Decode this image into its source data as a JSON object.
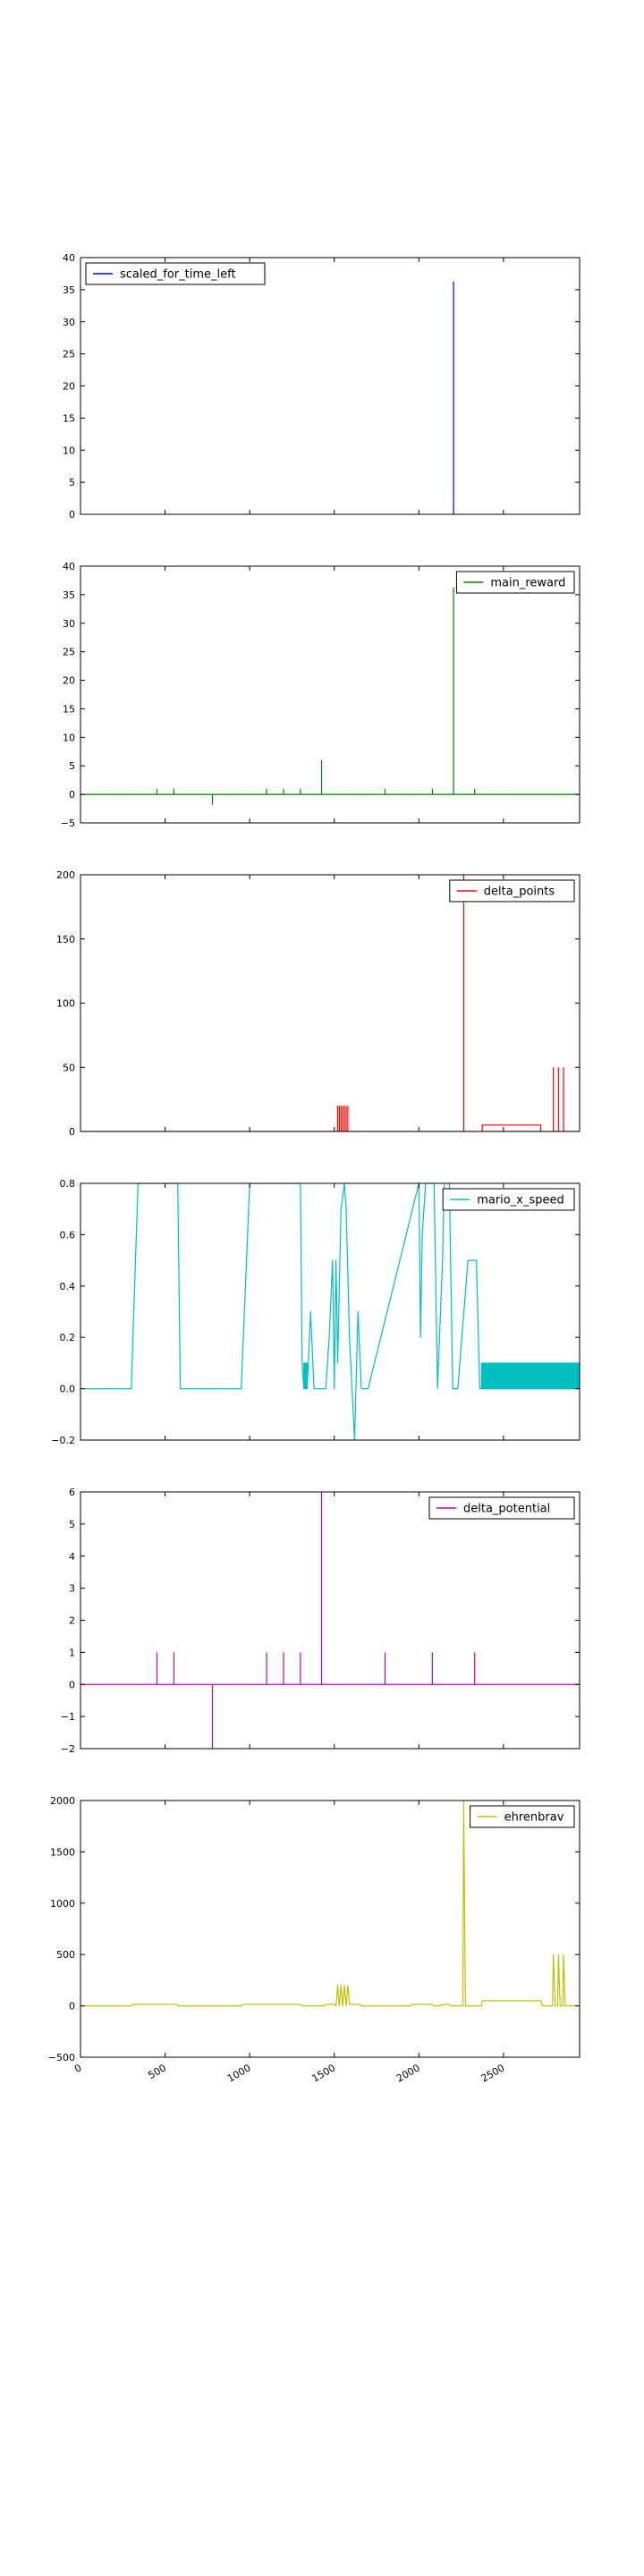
{
  "chart_data": [
    {
      "type": "line",
      "series": [
        {
          "name": "scaled_for_time_left",
          "color": "#0000ff",
          "spikes": [
            [
              2205,
              36.3
            ]
          ]
        }
      ],
      "ylim": [
        0,
        40
      ],
      "yticks": [
        0,
        5,
        10,
        15,
        20,
        25,
        30,
        35,
        40
      ],
      "legend": "top-left"
    },
    {
      "type": "line",
      "series": [
        {
          "name": "main_reward",
          "color": "#008000",
          "baseline": 0,
          "spikes": [
            [
              452,
              1
            ],
            [
              552,
              1
            ],
            [
              780,
              -1.8
            ],
            [
              1100,
              1
            ],
            [
              1200,
              1
            ],
            [
              1300,
              1
            ],
            [
              1425,
              6
            ],
            [
              1800,
              1
            ],
            [
              2080,
              1
            ],
            [
              2205,
              36.3
            ],
            [
              2330,
              1
            ]
          ]
        }
      ],
      "ylim": [
        -5,
        40
      ],
      "yticks": [
        -5,
        0,
        5,
        10,
        15,
        20,
        25,
        30,
        35,
        40
      ],
      "legend": "top-right"
    },
    {
      "type": "line",
      "series": [
        {
          "name": "delta_points",
          "color": "#ff0000",
          "baseline": 0,
          "spikes": [
            [
              1520,
              20
            ],
            [
              1530,
              20
            ],
            [
              1540,
              20
            ],
            [
              1550,
              20
            ],
            [
              1560,
              20
            ],
            [
              1570,
              20
            ],
            [
              1580,
              20
            ],
            [
              2265,
              200
            ],
            [
              2795,
              50
            ],
            [
              2825,
              50
            ],
            [
              2855,
              50
            ]
          ],
          "boxes": [
            [
              2375,
              2720,
              5
            ]
          ]
        }
      ],
      "ylim": [
        0,
        200
      ],
      "yticks": [
        0,
        50,
        100,
        150,
        200
      ],
      "legend": "top-right"
    },
    {
      "type": "line",
      "series": [
        {
          "name": "mario_x_speed",
          "color": "#00bfbf",
          "points": [
            [
              0,
              0
            ],
            [
              300,
              0
            ],
            [
              340,
              0.8
            ],
            [
              575,
              0.8
            ],
            [
              590,
              0
            ],
            [
              950,
              0
            ],
            [
              1000,
              0.8
            ],
            [
              1300,
              0.8
            ],
            [
              1310,
              0.1
            ],
            [
              1320,
              0
            ],
            [
              1330,
              0.1
            ],
            [
              1340,
              0
            ],
            [
              1360,
              0.3
            ],
            [
              1380,
              0
            ],
            [
              1450,
              0
            ],
            [
              1470,
              0.2
            ],
            [
              1490,
              0.5
            ],
            [
              1500,
              0
            ],
            [
              1510,
              0.5
            ],
            [
              1520,
              0.1
            ],
            [
              1540,
              0.7
            ],
            [
              1560,
              0.8
            ],
            [
              1570,
              0.7
            ],
            [
              1590,
              0.2
            ],
            [
              1620,
              -0.2
            ],
            [
              1640,
              0.3
            ],
            [
              1660,
              0
            ],
            [
              1700,
              0
            ],
            [
              2000,
              0.8
            ],
            [
              2010,
              0.2
            ],
            [
              2020,
              0.6
            ],
            [
              2040,
              0.8
            ],
            [
              2090,
              0.8
            ],
            [
              2110,
              0
            ],
            [
              2140,
              0.5
            ],
            [
              2150,
              0.8
            ],
            [
              2180,
              0.8
            ],
            [
              2200,
              0
            ],
            [
              2230,
              0
            ],
            [
              2290,
              0.5
            ],
            [
              2340,
              0.5
            ],
            [
              2360,
              0
            ],
            [
              2950,
              0
            ]
          ],
          "bands": [
            [
              1320,
              1340,
              0,
              0.1
            ],
            [
              2370,
              2950,
              0,
              0.1
            ]
          ]
        }
      ],
      "ylim": [
        -0.2,
        0.8
      ],
      "yticks": [
        -0.2,
        0.0,
        0.2,
        0.4,
        0.6,
        0.8
      ],
      "legend": "top-right"
    },
    {
      "type": "line",
      "series": [
        {
          "name": "delta_potential",
          "color": "#bf00bf",
          "baseline": 0,
          "spikes": [
            [
              452,
              1
            ],
            [
              552,
              1
            ],
            [
              780,
              -2
            ],
            [
              1100,
              1
            ],
            [
              1200,
              1
            ],
            [
              1300,
              1
            ],
            [
              1425,
              6
            ],
            [
              1800,
              1
            ],
            [
              2080,
              1
            ],
            [
              2330,
              1
            ]
          ]
        }
      ],
      "ylim": [
        -2,
        6
      ],
      "yticks": [
        -2,
        -1,
        0,
        1,
        2,
        3,
        4,
        5,
        6
      ],
      "legend": "top-right"
    },
    {
      "type": "line",
      "series": [
        {
          "name": "ehrenbrav",
          "color": "#bfbf00",
          "points": [
            [
              0,
              0
            ],
            [
              300,
              0
            ],
            [
              310,
              15
            ],
            [
              570,
              15
            ],
            [
              580,
              0
            ],
            [
              950,
              0
            ],
            [
              960,
              15
            ],
            [
              1300,
              15
            ],
            [
              1310,
              0
            ],
            [
              1440,
              0
            ],
            [
              1450,
              15
            ],
            [
              1500,
              15
            ],
            [
              1510,
              0
            ],
            [
              1520,
              200
            ],
            [
              1530,
              0
            ],
            [
              1540,
              200
            ],
            [
              1550,
              0
            ],
            [
              1560,
              200
            ],
            [
              1570,
              0
            ],
            [
              1580,
              200
            ],
            [
              1590,
              15
            ],
            [
              1650,
              15
            ],
            [
              1660,
              0
            ],
            [
              1950,
              0
            ],
            [
              1960,
              15
            ],
            [
              2080,
              15
            ],
            [
              2090,
              0
            ],
            [
              2130,
              0
            ],
            [
              2140,
              15
            ],
            [
              2180,
              15
            ],
            [
              2190,
              0
            ],
            [
              2260,
              0
            ],
            [
              2265,
              2000
            ],
            [
              2275,
              0
            ],
            [
              2370,
              0
            ],
            [
              2375,
              50
            ],
            [
              2720,
              50
            ],
            [
              2730,
              0
            ],
            [
              2790,
              0
            ],
            [
              2795,
              500
            ],
            [
              2805,
              0
            ],
            [
              2820,
              0
            ],
            [
              2825,
              500
            ],
            [
              2835,
              0
            ],
            [
              2850,
              0
            ],
            [
              2855,
              500
            ],
            [
              2865,
              0
            ],
            [
              2950,
              0
            ]
          ]
        }
      ],
      "ylim": [
        -500,
        2000
      ],
      "yticks": [
        -500,
        0,
        500,
        1000,
        1500,
        2000
      ],
      "legend": "top-right"
    }
  ],
  "xlim": [
    0,
    2950
  ],
  "xticks": [
    0,
    500,
    1000,
    1500,
    2000,
    2500
  ]
}
